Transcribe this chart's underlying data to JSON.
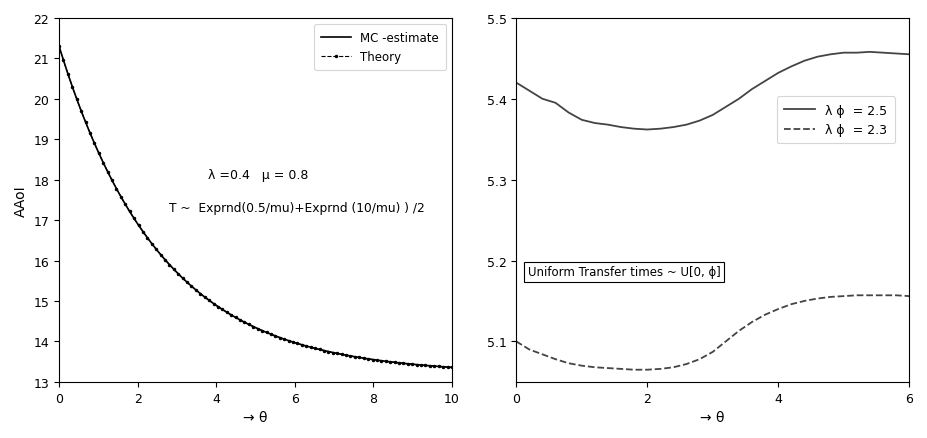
{
  "fig_width": 9.27,
  "fig_height": 4.39,
  "left_plot": {
    "xlabel": "→ θ",
    "ylabel": "AAoI",
    "xlim": [
      0,
      10
    ],
    "ylim": [
      13,
      22
    ],
    "yticks": [
      13,
      14,
      15,
      16,
      17,
      18,
      19,
      20,
      21,
      22
    ],
    "xticks": [
      0,
      2,
      4,
      6,
      8,
      10
    ],
    "annotation1": "λ =0.4   μ = 0.8",
    "annotation2": "T ~  Exprnd(0.5/mu)+Exprnd (10/mu) ) /2",
    "legend_mc": "MC -estimate",
    "legend_th": "Theory",
    "mc_color": "#000000",
    "theory_color": "#000000"
  },
  "right_plot": {
    "xlabel": "→ θ",
    "xlim": [
      0,
      6
    ],
    "ylim": [
      5.05,
      5.5
    ],
    "yticks": [
      5.1,
      5.2,
      5.3,
      5.4,
      5.5
    ],
    "xticks": [
      0,
      2,
      4,
      6
    ],
    "legend1": "λ ϕ  = 2.5",
    "legend2": "λ ϕ  = 2.3",
    "annotation": "Uniform Transfer times ~ U[0, ϕ]",
    "solid_color": "#444444",
    "dashed_color": "#444444",
    "theta_solid": [
      0.0,
      0.2,
      0.4,
      0.6,
      0.8,
      1.0,
      1.2,
      1.4,
      1.6,
      1.8,
      2.0,
      2.2,
      2.4,
      2.6,
      2.8,
      3.0,
      3.2,
      3.4,
      3.6,
      3.8,
      4.0,
      4.2,
      4.4,
      4.6,
      4.8,
      5.0,
      5.2,
      5.4,
      5.6,
      5.8,
      6.0
    ],
    "y_solid": [
      5.42,
      5.41,
      5.4,
      5.395,
      5.383,
      5.374,
      5.37,
      5.368,
      5.365,
      5.363,
      5.362,
      5.363,
      5.365,
      5.368,
      5.373,
      5.38,
      5.39,
      5.4,
      5.412,
      5.422,
      5.432,
      5.44,
      5.447,
      5.452,
      5.455,
      5.457,
      5.457,
      5.458,
      5.457,
      5.456,
      5.455
    ],
    "theta_dashed": [
      0.0,
      0.2,
      0.4,
      0.6,
      0.8,
      1.0,
      1.2,
      1.4,
      1.6,
      1.8,
      2.0,
      2.2,
      2.4,
      2.6,
      2.8,
      3.0,
      3.2,
      3.4,
      3.6,
      3.8,
      4.0,
      4.2,
      4.4,
      4.6,
      4.8,
      5.0,
      5.2,
      5.4,
      5.6,
      5.8,
      6.0
    ],
    "y_dashed": [
      5.1,
      5.09,
      5.084,
      5.078,
      5.073,
      5.07,
      5.068,
      5.067,
      5.066,
      5.065,
      5.065,
      5.066,
      5.068,
      5.072,
      5.078,
      5.087,
      5.1,
      5.113,
      5.124,
      5.133,
      5.14,
      5.146,
      5.15,
      5.153,
      5.155,
      5.156,
      5.157,
      5.157,
      5.157,
      5.157,
      5.156
    ]
  }
}
